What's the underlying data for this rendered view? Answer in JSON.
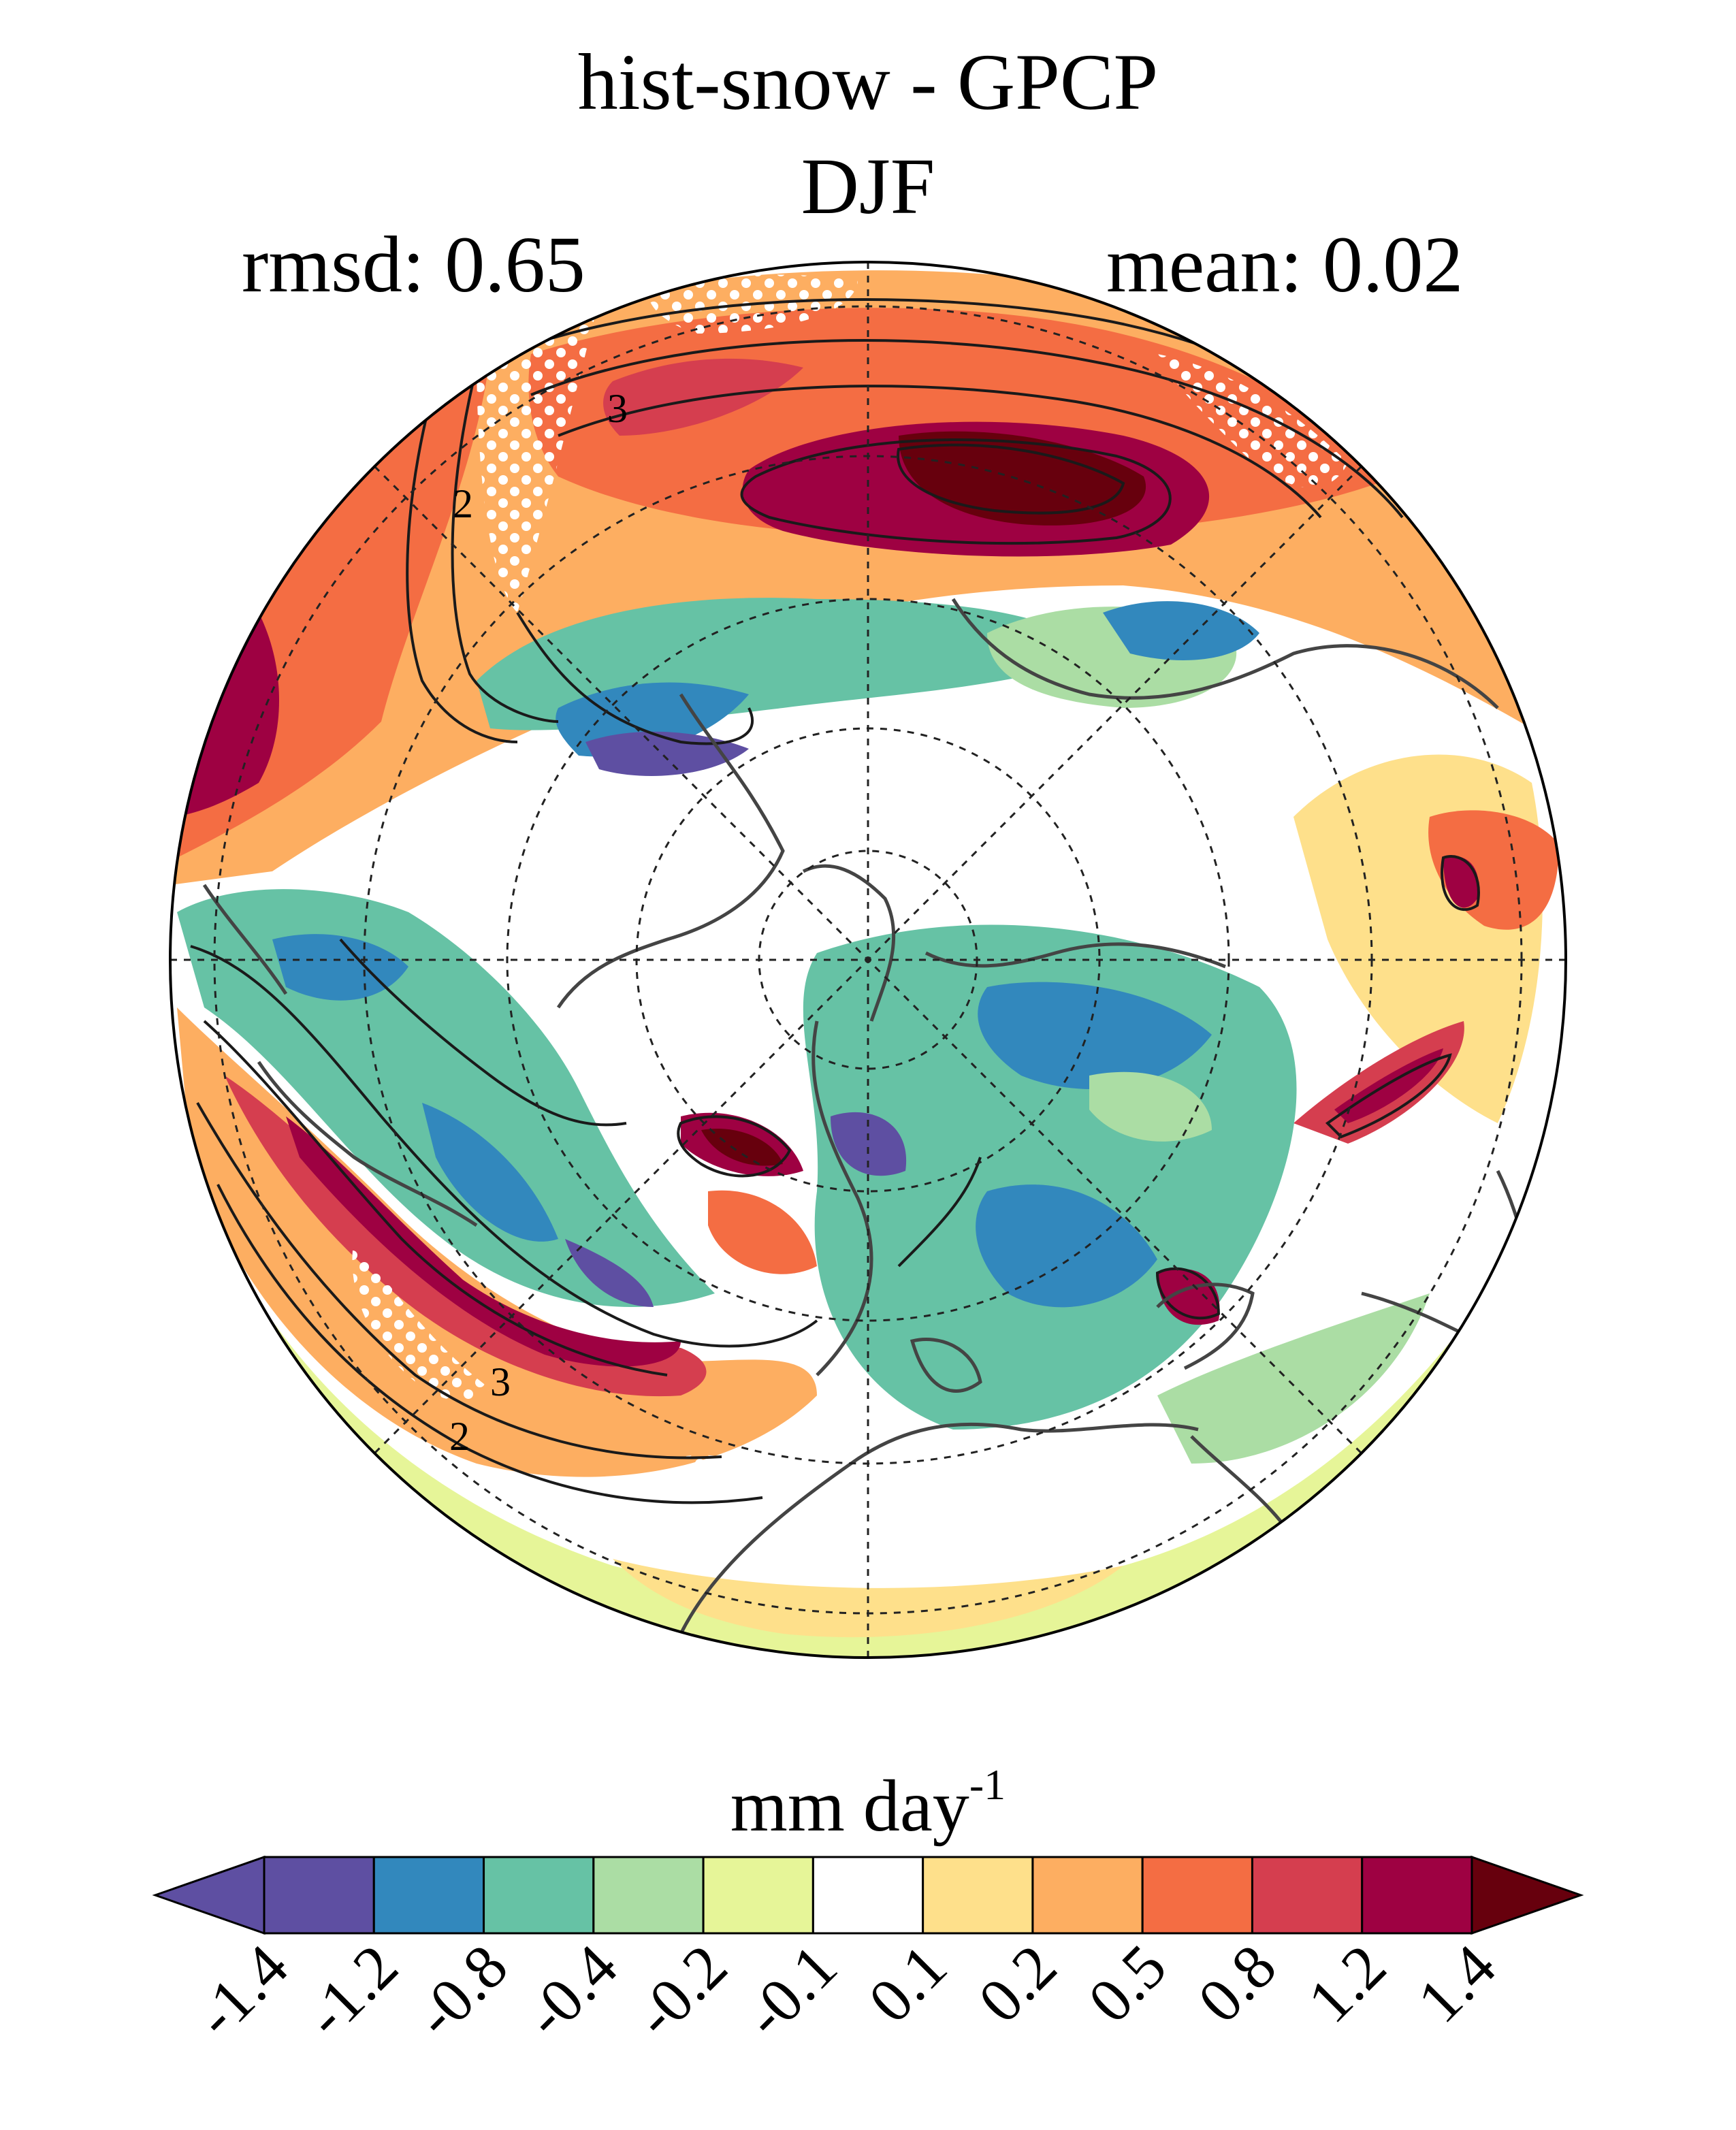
{
  "title_line1": "hist-snow - GPCP",
  "title_line2": "DJF",
  "stat_left": "rmsd: 0.65",
  "stat_right": "mean: 0.02",
  "colorbar": {
    "label_main": "mm day",
    "label_exponent": "-1",
    "tick_labels": [
      "-1.4",
      "-1.2",
      "-0.8",
      "-0.4",
      "-0.2",
      "-0.1",
      "0.1",
      "0.2",
      "0.5",
      "0.8",
      "1.2",
      "1.4"
    ],
    "colors": [
      "#5e4fa2",
      "#3288bd",
      "#66c2a5",
      "#abdda4",
      "#e6f598",
      "#ffffff",
      "#fee08b",
      "#fdae61",
      "#f46d43",
      "#d53e4f",
      "#9e0142"
    ],
    "extend_low_color": "#5e4fa2",
    "extend_high_color": "#67000d"
  },
  "map": {
    "projection": "north polar stereographic",
    "contour_labels": [
      "3",
      "2",
      "3",
      "2"
    ],
    "palette_fill_examples": {
      "strong_positive": "#9e0142",
      "positive": "#f46d43",
      "weak_positive": "#fdae61",
      "neutral": "#ffffff",
      "weak_negative": "#e6f598",
      "negative": "#66c2a5",
      "strong_negative": "#3288bd"
    }
  }
}
